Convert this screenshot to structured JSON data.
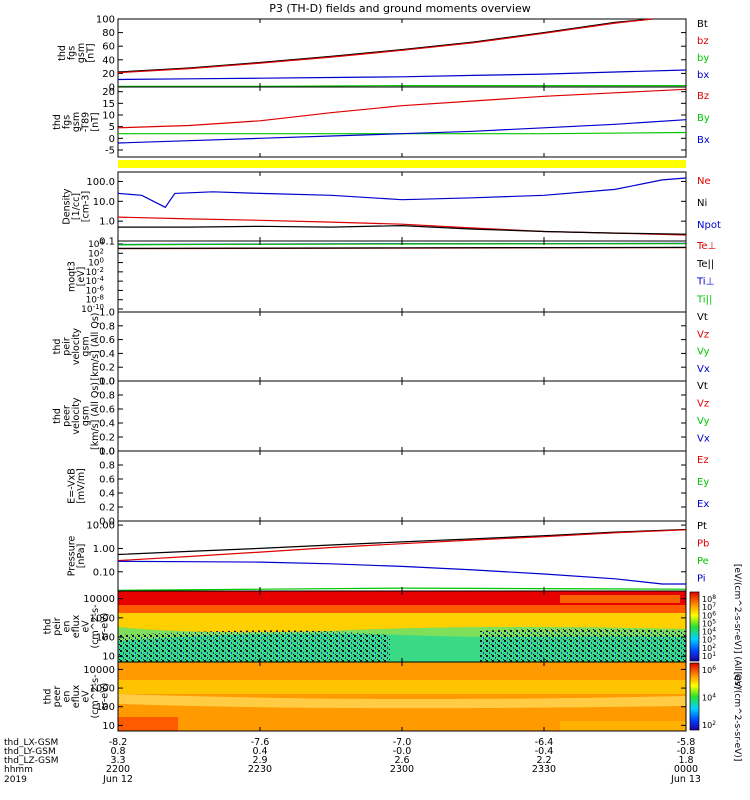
{
  "title": "P3 (TH-D) fields and ground moments overview",
  "colors": {
    "black": "#000000",
    "red": "#dd0000",
    "green": "#00c800",
    "blue": "#0000cc",
    "yellow": "#ffff00"
  },
  "time_axis": {
    "range": [
      "2019-06-12 22:00",
      "2019-06-13 00:00"
    ],
    "row_labels": [
      "thd_LX-GSM",
      "thd_LY-GSM",
      "thd_LZ-GSM",
      "hhmm",
      "2019"
    ],
    "columns": [
      {
        "time": "2019-06-12 22:00",
        "lx": "-8.2",
        "ly": "0.8",
        "lz": "3.3",
        "hhmm": "2200",
        "date": "Jun 12"
      },
      {
        "time": "2019-06-12 22:30",
        "lx": "-7.6",
        "ly": "0.4",
        "lz": "2.9",
        "hhmm": "2230",
        "date": ""
      },
      {
        "time": "2019-06-12 23:00",
        "lx": "-7.0",
        "ly": "-0.0",
        "lz": "2.6",
        "hhmm": "2300",
        "date": ""
      },
      {
        "time": "2019-06-12 23:30",
        "lx": "-6.4",
        "ly": "-0.4",
        "lz": "2.2",
        "hhmm": "2330",
        "date": ""
      },
      {
        "time": "2019-06-13 00:00",
        "lx": "-5.8",
        "ly": "-0.8",
        "lz": "1.8",
        "hhmm": "0000",
        "date": "Jun 13"
      }
    ]
  },
  "chart_data": [
    {
      "type": "line",
      "id": "p1",
      "ylabel_lines": [
        "thd",
        "fgs",
        "gsm",
        "[nT]"
      ],
      "ylim": [
        0,
        100
      ],
      "ticks": [
        "0",
        "20",
        "40",
        "60",
        "80",
        "100"
      ],
      "legend": [
        {
          "name": "Bt",
          "color": "black"
        },
        {
          "name": "bz",
          "color": "red"
        },
        {
          "name": "by",
          "color": "green"
        },
        {
          "name": "bx",
          "color": "blue"
        }
      ],
      "series": [
        {
          "name": "Bt",
          "color": "black",
          "x": [
            "22:00",
            "22:15",
            "22:30",
            "22:45",
            "23:00",
            "23:15",
            "23:30",
            "23:45",
            "23:53"
          ],
          "y": [
            22,
            28,
            36,
            45,
            55,
            66,
            80,
            95,
            100
          ]
        },
        {
          "name": "bz",
          "color": "red",
          "x": [
            "22:00",
            "22:15",
            "22:30",
            "22:45",
            "23:00",
            "23:15",
            "23:30",
            "23:45",
            "23:53"
          ],
          "y": [
            21,
            27,
            35,
            44,
            54,
            65,
            79,
            94,
            100
          ]
        },
        {
          "name": "by",
          "color": "green",
          "x": [
            "22:00",
            "22:30",
            "23:00",
            "23:30",
            "00:00"
          ],
          "y": [
            1,
            1,
            2,
            2,
            2
          ]
        },
        {
          "name": "bx",
          "color": "blue",
          "x": [
            "22:00",
            "22:15",
            "22:30",
            "22:45",
            "23:00",
            "23:15",
            "23:30",
            "23:45",
            "00:00"
          ],
          "y": [
            11,
            12,
            13,
            14,
            15,
            17,
            19,
            22,
            25
          ]
        }
      ]
    },
    {
      "type": "line",
      "id": "p2",
      "ylabel_lines": [
        "thd",
        "fgs",
        "gsm",
        "-T89",
        "[nT]"
      ],
      "ylim": [
        -8,
        22
      ],
      "ticks": [
        "-5",
        "0",
        "5",
        "10",
        "15",
        "20"
      ],
      "legend": [
        {
          "name": "Bz",
          "color": "red"
        },
        {
          "name": "By",
          "color": "green"
        },
        {
          "name": "Bx",
          "color": "blue"
        }
      ],
      "series": [
        {
          "name": "Bz",
          "color": "red",
          "x": [
            "22:00",
            "22:15",
            "22:30",
            "22:45",
            "23:00",
            "23:15",
            "23:30",
            "23:45",
            "00:00"
          ],
          "y": [
            4.5,
            5.5,
            7.5,
            11,
            14,
            16,
            18,
            19.5,
            21
          ]
        },
        {
          "name": "By",
          "color": "green",
          "x": [
            "22:00",
            "22:30",
            "23:00",
            "23:30",
            "00:00"
          ],
          "y": [
            2,
            2,
            2,
            2,
            2.5
          ]
        },
        {
          "name": "Bx",
          "color": "blue",
          "x": [
            "22:00",
            "22:15",
            "22:30",
            "22:45",
            "23:00",
            "23:15",
            "23:30",
            "23:45",
            "00:00"
          ],
          "y": [
            -2,
            -1,
            0,
            1,
            2,
            3,
            4.5,
            6,
            8
          ]
        }
      ]
    },
    {
      "type": "line",
      "id": "p3",
      "scale": "log",
      "ylabel_lines": [
        "Density",
        "[1/cc]",
        "[cm-3]"
      ],
      "ylim": [
        0.1,
        300
      ],
      "ticks": [
        "0.1",
        "1.0",
        "10.0",
        "100.0"
      ],
      "legend": [
        {
          "name": "Ne",
          "color": "red"
        },
        {
          "name": "Ni",
          "color": "black"
        },
        {
          "name": "Npot",
          "color": "blue"
        }
      ],
      "series": [
        {
          "name": "Ne",
          "color": "red",
          "x": [
            "22:00",
            "22:15",
            "22:30",
            "22:45",
            "23:00",
            "23:15",
            "23:30",
            "23:45",
            "00:00"
          ],
          "y": [
            1.6,
            1.3,
            1.1,
            0.9,
            0.7,
            0.45,
            0.3,
            0.25,
            0.2
          ]
        },
        {
          "name": "Ni",
          "color": "black",
          "x": [
            "22:00",
            "22:15",
            "22:30",
            "22:45",
            "23:00",
            "23:15",
            "23:30",
            "23:45",
            "00:00"
          ],
          "y": [
            0.5,
            0.5,
            0.55,
            0.5,
            0.6,
            0.4,
            0.3,
            0.25,
            0.22
          ]
        },
        {
          "name": "Npot",
          "color": "blue",
          "x": [
            "22:00",
            "22:05",
            "22:10",
            "22:12",
            "22:20",
            "22:30",
            "22:45",
            "23:00",
            "23:15",
            "23:30",
            "23:45",
            "23:55",
            "00:00"
          ],
          "y": [
            25,
            20,
            5,
            25,
            30,
            25,
            20,
            12,
            15,
            20,
            40,
            120,
            150
          ]
        }
      ]
    },
    {
      "type": "line",
      "id": "p4",
      "scale": "log",
      "ylabel_lines": [
        "moqt3",
        "[eV]"
      ],
      "ylim_exponent": [
        -10,
        4
      ],
      "tick_labels": [
        {
          "base": "10",
          "exp": "4"
        },
        {
          "base": "10",
          "exp": "2"
        },
        {
          "base": "10",
          "exp": "0"
        },
        {
          "base": "10",
          "exp": "-2"
        },
        {
          "base": "10",
          "exp": "-4"
        },
        {
          "base": "10",
          "exp": "-6"
        },
        {
          "base": "10",
          "exp": "-8"
        },
        {
          "base": "10",
          "exp": "-10"
        }
      ],
      "legend": [
        {
          "name": "Te⊥",
          "color": "red"
        },
        {
          "name": "Te||",
          "color": "black"
        },
        {
          "name": "Ti⊥",
          "color": "blue"
        },
        {
          "name": "Ti||",
          "color": "green"
        }
      ],
      "series": [
        {
          "name": "Te⊥",
          "color": "red",
          "x": [
            "22:00",
            "22:30",
            "23:00",
            "23:30",
            "00:00"
          ],
          "y": [
            300,
            350,
            400,
            450,
            500
          ]
        },
        {
          "name": "Te||",
          "color": "black",
          "x": [
            "22:00",
            "22:30",
            "23:00",
            "23:30",
            "00:00"
          ],
          "y": [
            350,
            400,
            450,
            500,
            550
          ]
        },
        {
          "name": "Ti⊥",
          "color": "blue",
          "x": [
            "22:00",
            "22:30",
            "23:00",
            "23:30",
            "00:00"
          ],
          "y": [
            2000,
            2500,
            3000,
            3000,
            3500
          ]
        },
        {
          "name": "Ti||",
          "color": "green",
          "x": [
            "22:00",
            "22:30",
            "23:00",
            "23:30",
            "00:00"
          ],
          "y": [
            1800,
            2200,
            2600,
            2800,
            3000
          ]
        }
      ]
    },
    {
      "type": "line",
      "id": "p5",
      "ylabel_lines": [
        "thd",
        "peir",
        "velocity",
        "gsm",
        "[km/s] (All Qs)"
      ],
      "ylim": [
        0,
        1
      ],
      "ticks": [
        "0.0",
        "0.2",
        "0.4",
        "0.6",
        "0.8",
        "1.0"
      ],
      "legend": [
        {
          "name": "Vt",
          "color": "black"
        },
        {
          "name": "Vz",
          "color": "red"
        },
        {
          "name": "Vy",
          "color": "green"
        },
        {
          "name": "Vx",
          "color": "blue"
        }
      ],
      "series": []
    },
    {
      "type": "line",
      "id": "p6",
      "ylabel_lines": [
        "thd",
        "peer",
        "velocity",
        "gsm",
        "[km/s] (All Qs)"
      ],
      "ylim": [
        0,
        1
      ],
      "ticks": [
        "0.0",
        "0.2",
        "0.4",
        "0.6",
        "0.8",
        "1.0"
      ],
      "legend": [
        {
          "name": "Vt",
          "color": "black"
        },
        {
          "name": "Vz",
          "color": "red"
        },
        {
          "name": "Vy",
          "color": "green"
        },
        {
          "name": "Vx",
          "color": "blue"
        }
      ],
      "series": []
    },
    {
      "type": "line",
      "id": "p7",
      "ylabel_lines": [
        "E=-VxB",
        "[mV/m]"
      ],
      "ylim": [
        0,
        1
      ],
      "ticks": [
        "0.0",
        "0.2",
        "0.4",
        "0.6",
        "0.8",
        "1.0"
      ],
      "legend": [
        {
          "name": "Ez",
          "color": "red"
        },
        {
          "name": "Ey",
          "color": "green"
        },
        {
          "name": "Ex",
          "color": "blue"
        }
      ],
      "series": []
    },
    {
      "type": "line",
      "id": "p8",
      "scale": "log",
      "ylabel_lines": [
        "Pressure",
        "[nPa]"
      ],
      "ylim": [
        0.015,
        15
      ],
      "ticks": [
        "0.10",
        "1.00",
        "10.00"
      ],
      "legend": [
        {
          "name": "Pt",
          "color": "black"
        },
        {
          "name": "Pb",
          "color": "red"
        },
        {
          "name": "Pe",
          "color": "green"
        },
        {
          "name": "Pi",
          "color": "blue"
        }
      ],
      "series": [
        {
          "name": "Pt",
          "color": "black",
          "x": [
            "22:00",
            "22:15",
            "22:30",
            "22:45",
            "23:00",
            "23:15",
            "23:30",
            "23:45",
            "00:00"
          ],
          "y": [
            0.55,
            0.75,
            1.0,
            1.4,
            1.9,
            2.6,
            3.5,
            5.0,
            6.5
          ]
        },
        {
          "name": "Pb",
          "color": "red",
          "x": [
            "22:00",
            "22:15",
            "22:30",
            "22:45",
            "23:00",
            "23:15",
            "23:30",
            "23:45",
            "00:00"
          ],
          "y": [
            0.3,
            0.45,
            0.7,
            1.1,
            1.6,
            2.3,
            3.2,
            4.7,
            6.3
          ]
        },
        {
          "name": "Pe",
          "color": "green",
          "x": [
            "22:00",
            "22:30",
            "23:00",
            "23:30",
            "00:00"
          ],
          "y": [
            0.016,
            0.018,
            0.02,
            0.019,
            0.018
          ]
        },
        {
          "name": "Pi",
          "color": "blue",
          "x": [
            "22:00",
            "22:15",
            "22:30",
            "22:45",
            "23:00",
            "23:15",
            "23:30",
            "23:45",
            "23:55",
            "00:00"
          ],
          "y": [
            0.28,
            0.27,
            0.26,
            0.22,
            0.17,
            0.12,
            0.08,
            0.05,
            0.03,
            0.03
          ]
        }
      ]
    },
    {
      "type": "heatmap",
      "id": "p9",
      "scale": "log",
      "ylabel_lines": [
        "thd",
        "peir",
        "en",
        "eflux",
        "eV",
        "(cm^2-s-",
        "sr-eV)"
      ],
      "ylim": [
        5,
        25000
      ],
      "ticks": [
        "10",
        "100",
        "1000",
        "10000"
      ],
      "colorbar": {
        "label": "[eV/(cm^2-s-sr-eV)] (All Qs)",
        "ticks": [
          {
            "base": "10",
            "exp": "8"
          },
          {
            "base": "10",
            "exp": "7"
          },
          {
            "base": "10",
            "exp": "6"
          },
          {
            "base": "10",
            "exp": "5"
          },
          {
            "base": "10",
            "exp": "4"
          },
          {
            "base": "10",
            "exp": "3"
          },
          {
            "base": "10",
            "exp": "2"
          },
          {
            "base": "10",
            "exp": "1"
          }
        ]
      }
    },
    {
      "type": "heatmap",
      "id": "p10",
      "scale": "log",
      "ylabel_lines": [
        "thd",
        "peer",
        "en",
        "eflux",
        "eV",
        "(cm^2-s-",
        "sr-eV)"
      ],
      "ylim": [
        5,
        25000
      ],
      "ticks": [
        "10",
        "100",
        "1000",
        "10000"
      ],
      "colorbar": {
        "label": "[eV/(cm^2-s-sr-eV)]",
        "ticks": [
          {
            "base": "10",
            "exp": "6"
          },
          {
            "base": "10",
            "exp": "4"
          },
          {
            "base": "10",
            "exp": "2"
          }
        ]
      }
    }
  ]
}
